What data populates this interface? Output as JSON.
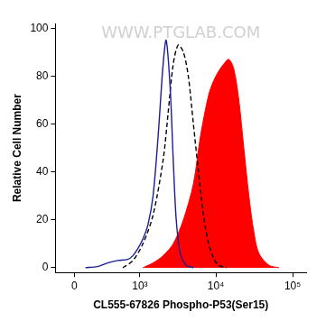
{
  "chart_data": {
    "type": "line",
    "x_label": "CL555-67826 Phospho-P53(Ser15)",
    "y_label": "Relative Cell Number",
    "annotations": [
      "WWW.PTGLAB.COM"
    ],
    "log": "x",
    "grid": false,
    "xlim": [
      -170,
      150000
    ],
    "xticks": [
      0,
      {
        "value": 1000,
        "label": "10³"
      },
      {
        "value": 10000,
        "label": "10⁴"
      },
      {
        "value": 100000,
        "label": "10⁵"
      }
    ],
    "ylim": [
      -2,
      102
    ],
    "yticks": [
      0,
      20,
      40,
      60,
      80,
      100
    ],
    "series": [
      {
        "color": "#1c1c96",
        "line_style": "solid",
        "x": [
          97,
          215,
          335,
          487,
          681,
          801,
          940,
          1100,
          1285,
          1502,
          1753,
          2040,
          2237,
          2525,
          2770,
          3030,
          3420,
          4100,
          5080
        ],
        "values": [
          0,
          0.5,
          2,
          3,
          3.5,
          5,
          8,
          12,
          18,
          30,
          55,
          85,
          95,
          75,
          45,
          20,
          6,
          1,
          0
        ]
      },
      {
        "color": "#000000",
        "line_style": "dashed",
        "x": [
          577,
          801,
          1100,
          1502,
          2040,
          2380,
          2770,
          3220,
          3760,
          4360,
          5080,
          5920,
          6890,
          8010,
          9320,
          10830,
          13800
        ],
        "values": [
          0,
          3,
          10,
          22,
          45,
          65,
          85,
          93,
          90,
          80,
          60,
          40,
          22,
          10,
          4,
          1,
          0
        ]
      },
      {
        "color": "#ff0000",
        "type": "area",
        "line_style": "solid",
        "x": [
          1100,
          1502,
          2040,
          2770,
          3760,
          5080,
          6290,
          8010,
          9320,
          10830,
          12600,
          14700,
          17100,
          19900,
          23100,
          26900,
          31200,
          36300,
          49300,
          66700
        ],
        "values": [
          0,
          2,
          5,
          10,
          20,
          35,
          55,
          72,
          78,
          82,
          85,
          87,
          83,
          70,
          50,
          30,
          15,
          6,
          1,
          0
        ]
      }
    ]
  }
}
